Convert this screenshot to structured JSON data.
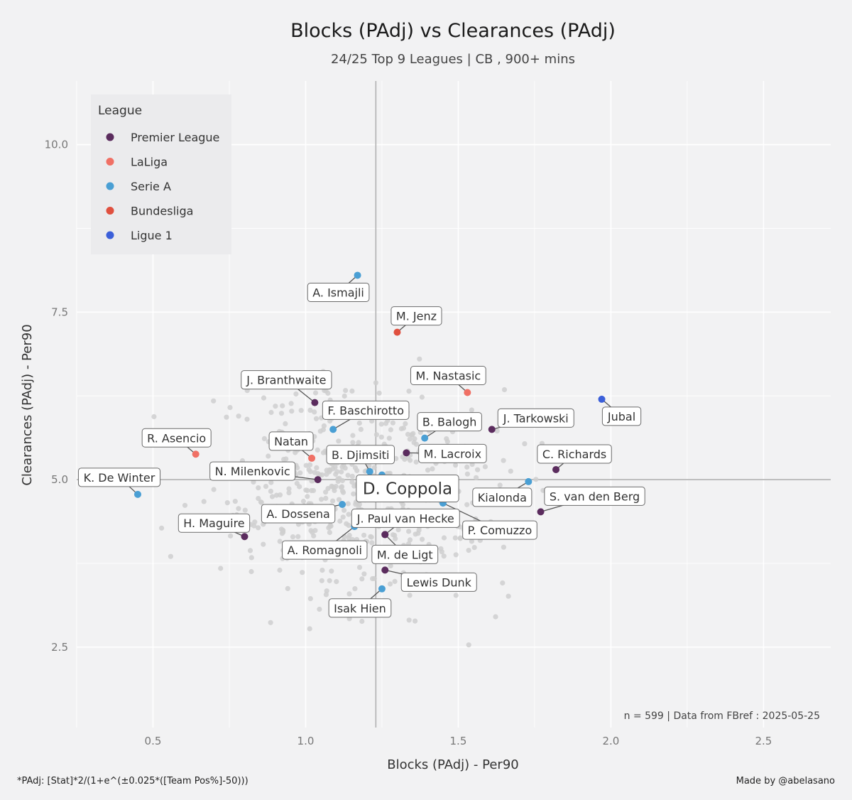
{
  "chart_data": {
    "type": "scatter",
    "title": "Blocks (PAdj)  vs  Clearances (PAdj)",
    "subtitle": "24/25 Top 9 Leagues | CB , 900+ mins",
    "xlabel": "Blocks (PAdj)  -  Per90",
    "ylabel": "Clearances (PAdj)  -  Per90",
    "xlim": [
      0.25,
      2.72
    ],
    "ylim": [
      1.3,
      10.95
    ],
    "x_ticks": [
      0.5,
      1.0,
      1.5,
      2.0,
      2.5
    ],
    "x_tick_labels": [
      "0.5",
      "1.0",
      "1.5",
      "2.0",
      "2.5"
    ],
    "y_ticks": [
      2.5,
      5.0,
      7.5,
      10.0
    ],
    "y_tick_labels": [
      "2.5",
      "5.0",
      "7.5",
      "10.0"
    ],
    "x_minor_ticks": [
      0.25,
      0.75,
      1.25,
      1.75,
      2.25
    ],
    "y_minor_ticks": [
      3.75,
      6.25,
      8.75
    ],
    "reference_lines": {
      "x": 1.23,
      "y": 5.0
    },
    "grid": true,
    "legend": {
      "title": "League",
      "position": "top-left",
      "entries": [
        {
          "name": "Premier League",
          "color": "#5b2c5e"
        },
        {
          "name": "LaLiga",
          "color": "#f07065"
        },
        {
          "name": "Serie A",
          "color": "#4a9fd4"
        },
        {
          "name": "Bundesliga",
          "color": "#e0503f"
        },
        {
          "name": "Ligue 1",
          "color": "#3b5fd9"
        }
      ]
    },
    "highlighted": [
      {
        "name": "A. Ismajli",
        "league": "Serie A",
        "x": 1.17,
        "y": 8.05,
        "big": false
      },
      {
        "name": "M. Jenz",
        "league": "Bundesliga",
        "x": 1.3,
        "y": 7.2,
        "big": false
      },
      {
        "name": "M. Nastasic",
        "league": "LaLiga",
        "x": 1.53,
        "y": 6.3,
        "big": false
      },
      {
        "name": "J. Branthwaite",
        "league": "Premier League",
        "x": 1.03,
        "y": 6.15,
        "big": false
      },
      {
        "name": "Jubal",
        "league": "Ligue 1",
        "x": 1.97,
        "y": 6.2,
        "big": false
      },
      {
        "name": "F. Baschirotto",
        "league": "Serie A",
        "x": 1.09,
        "y": 5.75,
        "big": false
      },
      {
        "name": "J. Tarkowski",
        "league": "Premier League",
        "x": 1.61,
        "y": 5.75,
        "big": false
      },
      {
        "name": "B. Balogh",
        "league": "Serie A",
        "x": 1.39,
        "y": 5.62,
        "big": false
      },
      {
        "name": "R. Asencio",
        "league": "LaLiga",
        "x": 0.64,
        "y": 5.38,
        "big": false
      },
      {
        "name": "Natan",
        "league": "LaLiga",
        "x": 1.02,
        "y": 5.32,
        "big": false
      },
      {
        "name": "M. Lacroix",
        "league": "Premier League",
        "x": 1.33,
        "y": 5.4,
        "big": false
      },
      {
        "name": "B. Djimsiti",
        "league": "Serie A",
        "x": 1.21,
        "y": 5.12,
        "big": false
      },
      {
        "name": "C. Richards",
        "league": "Premier League",
        "x": 1.82,
        "y": 5.15,
        "big": false
      },
      {
        "name": "N. Milenkovic",
        "league": "Premier League",
        "x": 1.04,
        "y": 5.0,
        "big": false
      },
      {
        "name": "K. De Winter",
        "league": "Serie A",
        "x": 0.45,
        "y": 4.78,
        "big": false
      },
      {
        "name": "D. Coppola",
        "league": "Serie A",
        "x": 1.25,
        "y": 5.07,
        "big": true
      },
      {
        "name": "Kialonda",
        "league": "Serie A",
        "x": 1.73,
        "y": 4.97,
        "big": false
      },
      {
        "name": "A. Dossena",
        "league": "Serie A",
        "x": 1.12,
        "y": 4.63,
        "big": false
      },
      {
        "name": "S. van den Berg",
        "league": "Premier League",
        "x": 1.77,
        "y": 4.52,
        "big": false
      },
      {
        "name": "P. Comuzzo",
        "league": "Serie A",
        "x": 1.45,
        "y": 4.65,
        "big": false
      },
      {
        "name": "J. Paul van Hecke",
        "league": "Premier League",
        "x": 1.26,
        "y": 4.18,
        "big": false
      },
      {
        "name": "H. Maguire",
        "league": "Premier League",
        "x": 0.8,
        "y": 4.15,
        "big": false
      },
      {
        "name": "A. Romagnoli",
        "league": "Serie A",
        "x": 1.16,
        "y": 4.3,
        "big": false
      },
      {
        "name": "M. de Ligt",
        "league": "Premier League",
        "x": 1.26,
        "y": 4.18,
        "big": false
      },
      {
        "name": "Lewis Dunk",
        "league": "Premier League",
        "x": 1.26,
        "y": 3.65,
        "big": false
      },
      {
        "name": "Isak Hien",
        "league": "Serie A",
        "x": 1.25,
        "y": 3.37,
        "big": false
      }
    ],
    "annotation": "n =  599  | Data from  FBref : 2025-05-25"
  },
  "footer": {
    "formula": "*PAdj: [Stat]*2/(1+e^(±0.025*([Team Pos%]-50)))",
    "credit": "Made by @abelasano"
  }
}
